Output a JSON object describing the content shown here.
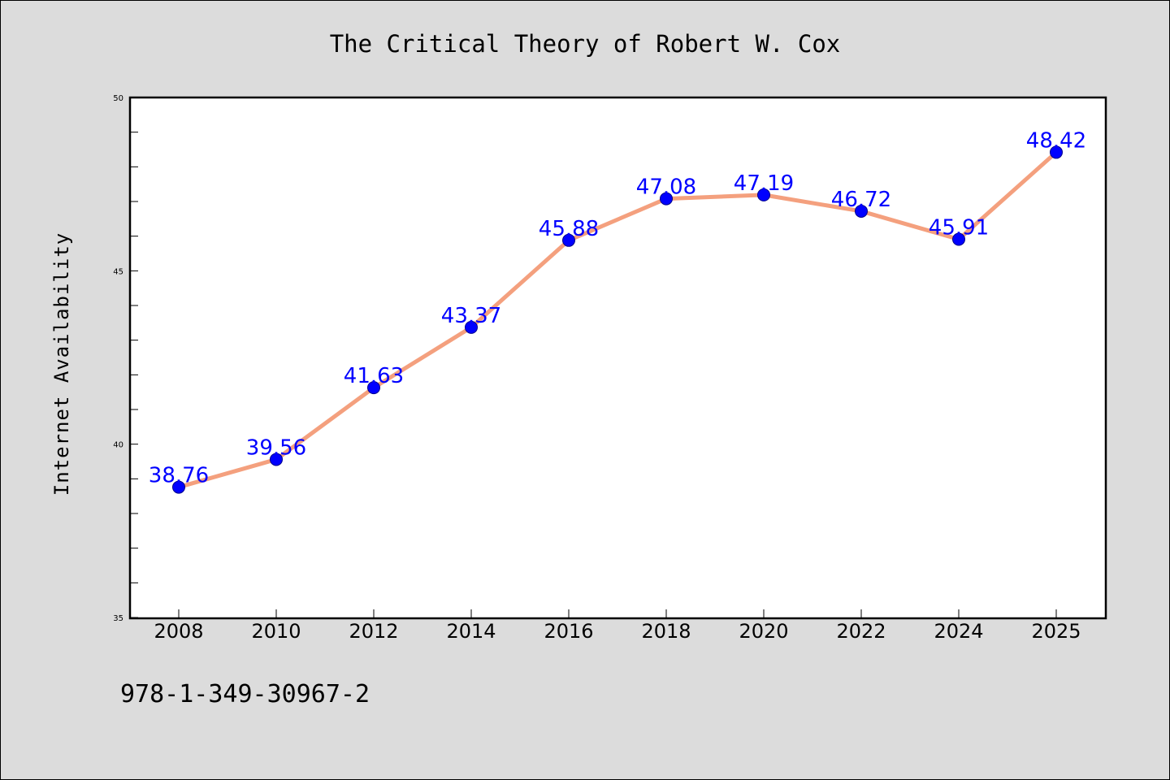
{
  "chart_data": {
    "type": "line",
    "title": "The Critical Theory of Robert W. Cox",
    "xlabel": "",
    "ylabel": "Internet Availability",
    "categories": [
      "2008",
      "2010",
      "2012",
      "2014",
      "2016",
      "2018",
      "2020",
      "2022",
      "2024",
      "2025"
    ],
    "series": [
      {
        "values": [
          38.76,
          39.56,
          41.63,
          43.37,
          45.88,
          47.08,
          47.19,
          46.72,
          45.91,
          48.42
        ],
        "data_labels": [
          "38.76",
          "39.56",
          "41.63",
          "43.37",
          "45.88",
          "47.08",
          "47.19",
          "46.72",
          "45.91",
          "48.42"
        ],
        "line_color": "#f4a07e",
        "marker_color": "#0000ff",
        "label_color": "#0000ff"
      }
    ],
    "ylim": [
      35,
      50
    ],
    "yticks": [
      "35",
      "40",
      "45",
      "50"
    ],
    "grid": false,
    "legend": "none"
  },
  "footer": {
    "isbn": "978-1-349-30967-2"
  },
  "colors": {
    "background": "#dcdcdc",
    "plot_background": "#ffffff"
  }
}
